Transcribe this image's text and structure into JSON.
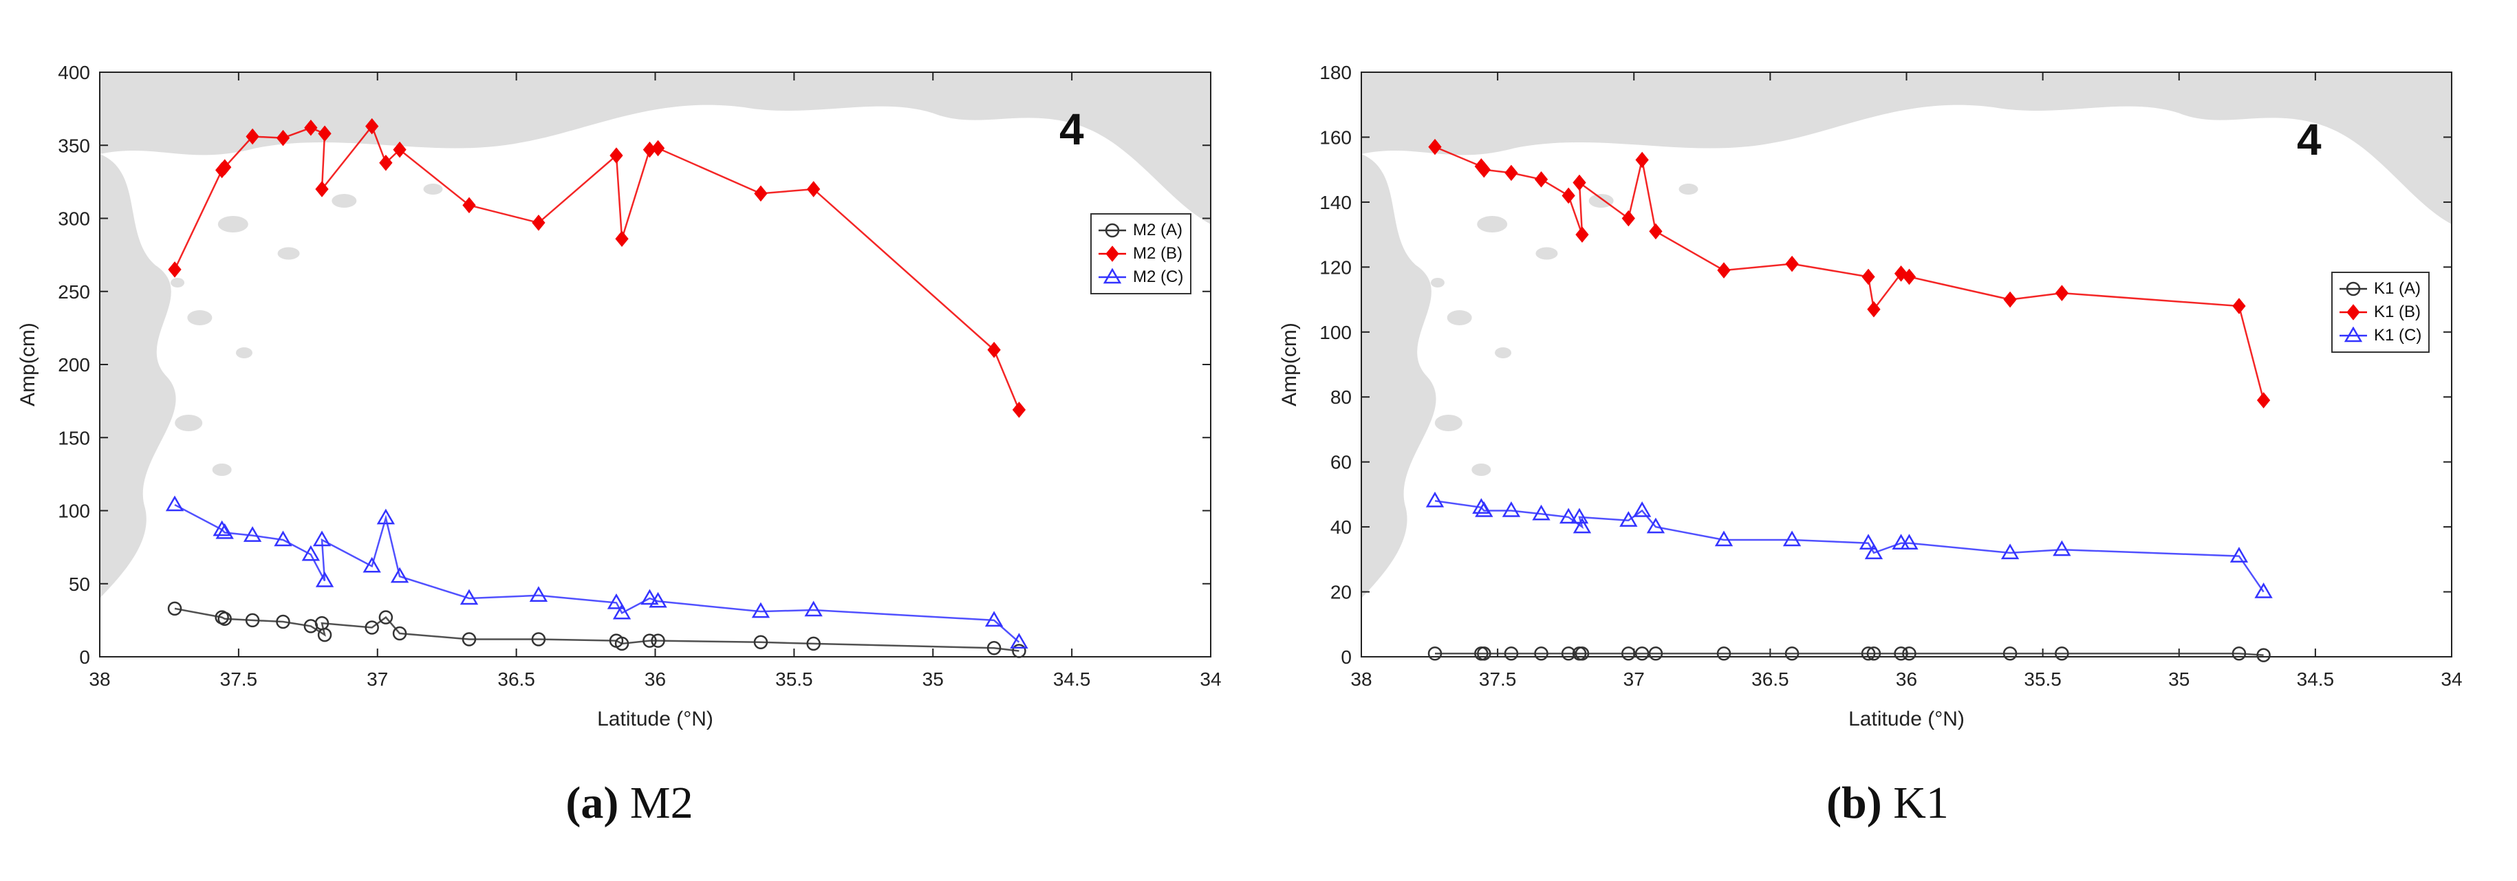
{
  "chart_data": [
    {
      "type": "line",
      "panel": "a",
      "caption_label": "(a)",
      "caption_text": " M2",
      "xlabel": "Latitude (°N)",
      "ylabel": "Amp(cm)",
      "xlim": [
        38,
        34
      ],
      "ylim": [
        0,
        400
      ],
      "xticks": [
        "38",
        "37.5",
        "37",
        "36.5",
        "36",
        "35.5",
        "35",
        "34.5",
        "34"
      ],
      "yticks": [
        "0",
        "50",
        "100",
        "150",
        "200",
        "250",
        "300",
        "350",
        "400"
      ],
      "background": "land-map",
      "map_label": "4",
      "legend_position": "right",
      "series": [
        {
          "name": "M2 (A)",
          "color": "#333333",
          "marker": "circle",
          "x": [
            37.73,
            37.56,
            37.55,
            37.45,
            37.34,
            37.24,
            37.19,
            37.2,
            37.02,
            36.97,
            36.92,
            36.67,
            36.42,
            36.14,
            36.12,
            36.02,
            35.99,
            35.62,
            35.43,
            34.78,
            34.69
          ],
          "y": [
            33,
            27,
            26,
            25,
            24,
            21,
            15,
            23,
            20,
            27,
            16,
            12,
            12,
            11,
            9,
            11,
            11,
            10,
            9,
            6,
            4
          ]
        },
        {
          "name": "M2 (B)",
          "color": "#f20000",
          "marker": "diamond",
          "x": [
            37.73,
            37.56,
            37.55,
            37.45,
            37.34,
            37.24,
            37.19,
            37.2,
            37.02,
            36.97,
            36.92,
            36.67,
            36.42,
            36.14,
            36.12,
            36.02,
            35.99,
            35.62,
            35.43,
            34.78,
            34.69
          ],
          "y": [
            265,
            333,
            335,
            356,
            355,
            362,
            358,
            320,
            363,
            338,
            347,
            309,
            297,
            343,
            286,
            347,
            348,
            317,
            320,
            210,
            169
          ]
        },
        {
          "name": "M2 (C)",
          "color": "#3333ff",
          "marker": "triangle",
          "x": [
            37.73,
            37.56,
            37.55,
            37.45,
            37.34,
            37.24,
            37.19,
            37.2,
            37.02,
            36.97,
            36.92,
            36.67,
            36.42,
            36.14,
            36.12,
            36.02,
            35.99,
            35.62,
            35.43,
            34.78,
            34.69
          ],
          "y": [
            104,
            87,
            85,
            83,
            80,
            70,
            52,
            80,
            62,
            95,
            55,
            40,
            42,
            37,
            30,
            40,
            38,
            31,
            32,
            25,
            10
          ]
        }
      ]
    },
    {
      "type": "line",
      "panel": "b",
      "caption_label": "(b)",
      "caption_text": " K1",
      "xlabel": "Latitude (°N)",
      "ylabel": "Amp(cm)",
      "xlim": [
        38,
        34
      ],
      "ylim": [
        0,
        180
      ],
      "xticks": [
        "38",
        "37.5",
        "37",
        "36.5",
        "36",
        "35.5",
        "35",
        "34.5",
        "34"
      ],
      "yticks": [
        "0",
        "20",
        "40",
        "60",
        "80",
        "100",
        "120",
        "140",
        "160",
        "180"
      ],
      "background": "land-map",
      "map_label": "4",
      "legend_position": "right",
      "series": [
        {
          "name": "K1 (A)",
          "color": "#333333",
          "marker": "circle",
          "x": [
            37.73,
            37.56,
            37.55,
            37.45,
            37.34,
            37.24,
            37.19,
            37.2,
            37.02,
            36.97,
            36.92,
            36.67,
            36.42,
            36.14,
            36.12,
            36.02,
            35.99,
            35.62,
            35.43,
            34.78,
            34.69
          ],
          "y": [
            1,
            1,
            1,
            1,
            1,
            1,
            1,
            1,
            1,
            1,
            1,
            1,
            1,
            1,
            1,
            1,
            1,
            1,
            1,
            1,
            0.5
          ]
        },
        {
          "name": "K1 (B)",
          "color": "#f20000",
          "marker": "diamond",
          "x": [
            37.73,
            37.56,
            37.55,
            37.45,
            37.34,
            37.24,
            37.19,
            37.2,
            37.02,
            36.97,
            36.92,
            36.67,
            36.42,
            36.14,
            36.12,
            36.02,
            35.99,
            35.62,
            35.43,
            34.78,
            34.69
          ],
          "y": [
            157,
            151,
            150,
            149,
            147,
            142,
            130,
            146,
            135,
            153,
            131,
            119,
            121,
            117,
            107,
            118,
            117,
            110,
            112,
            108,
            79
          ]
        },
        {
          "name": "K1 (C)",
          "color": "#3333ff",
          "marker": "triangle",
          "x": [
            37.73,
            37.56,
            37.55,
            37.45,
            37.34,
            37.24,
            37.19,
            37.2,
            37.02,
            36.97,
            36.92,
            36.67,
            36.42,
            36.14,
            36.12,
            36.02,
            35.99,
            35.62,
            35.43,
            34.78,
            34.69
          ],
          "y": [
            48,
            46,
            45,
            45,
            44,
            43,
            40,
            43,
            42,
            45,
            40,
            36,
            36,
            35,
            32,
            35,
            35,
            32,
            33,
            31,
            20
          ]
        }
      ]
    }
  ]
}
